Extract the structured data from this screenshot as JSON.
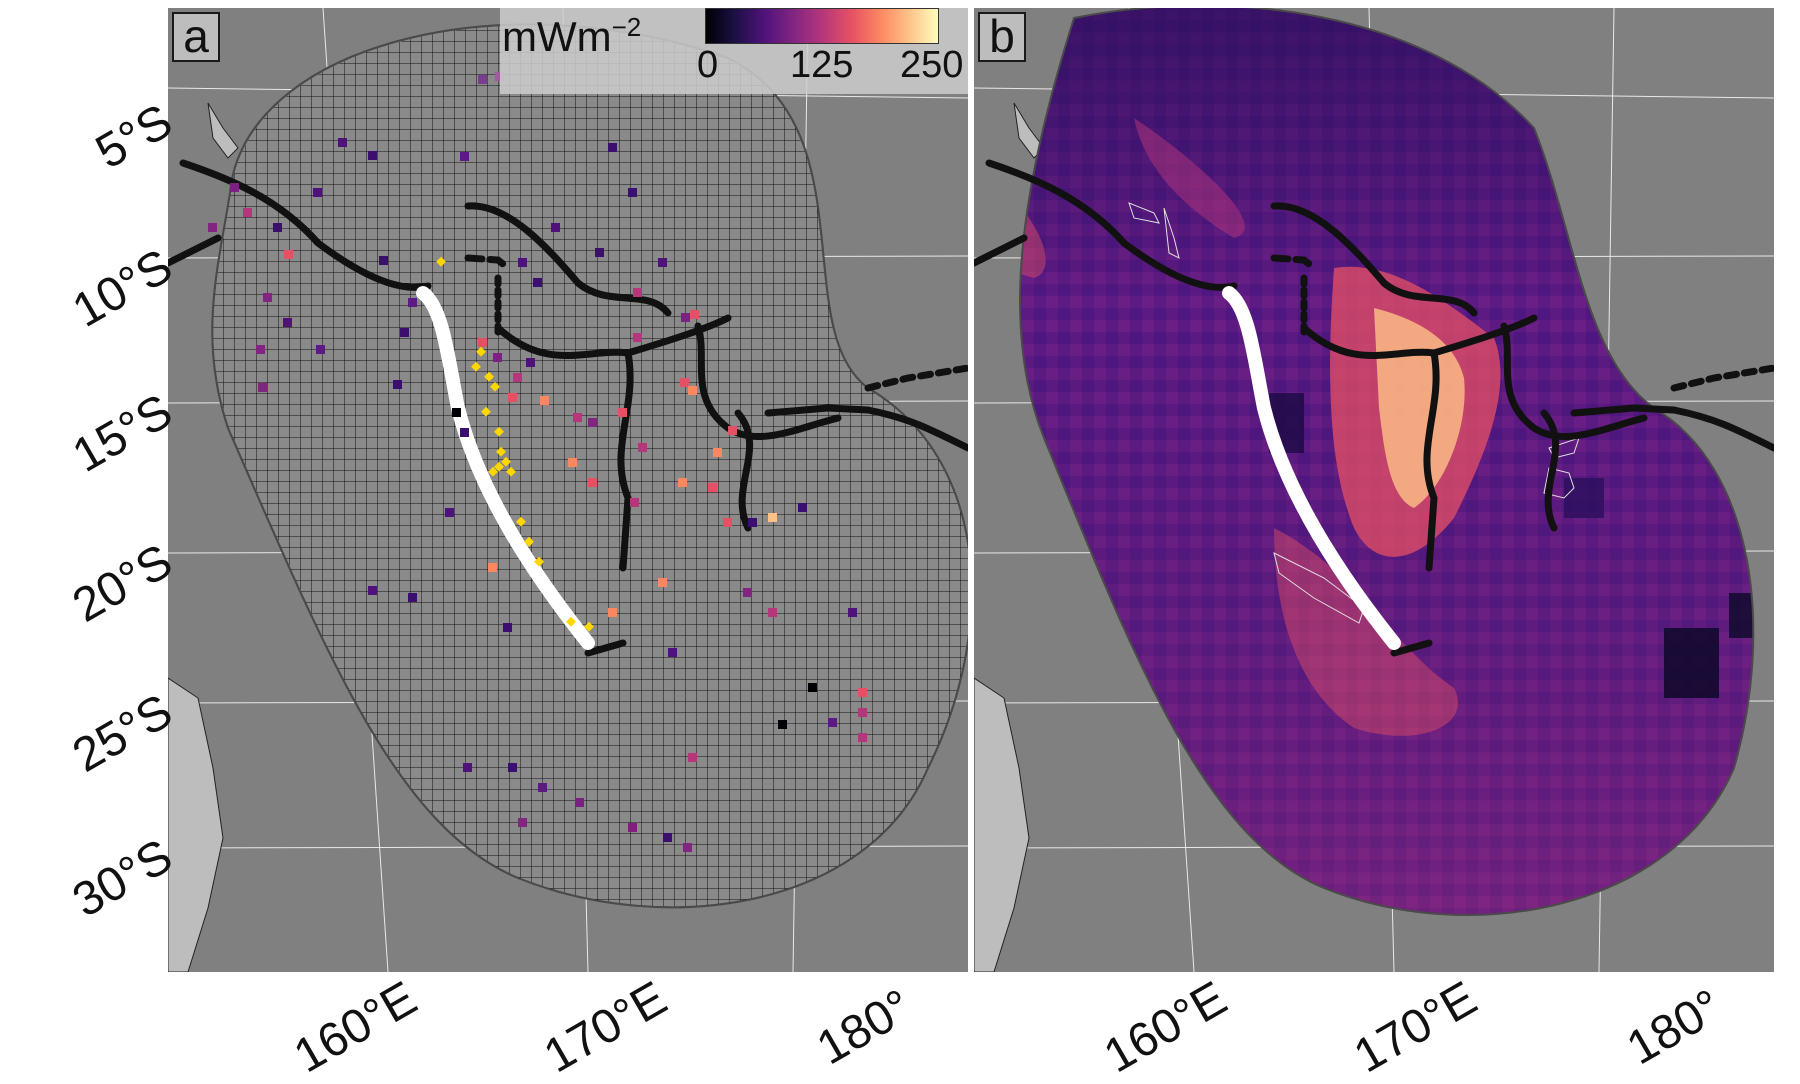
{
  "figure": {
    "panels": [
      {
        "label": "a",
        "content": "heat-flow observations over analysis grid"
      },
      {
        "label": "b",
        "content": "predicted heat-flow grid"
      }
    ],
    "latitude_labels": [
      "5°S",
      "10°S",
      "15°S",
      "20°S",
      "25°S",
      "30°S"
    ],
    "longitude_labels": [
      "160°E",
      "170°E",
      "180°"
    ],
    "legend": {
      "unit_main": "mWm",
      "unit_exponent": "−2",
      "ticks": [
        "0",
        "125",
        "250"
      ],
      "range": [
        0,
        250
      ],
      "colormap": "magma"
    },
    "colors": {
      "ocean": "#808080",
      "land": "#bdbdbd",
      "plate_boundary": "#111111",
      "highlighted_trench": "#ffffff",
      "yellow_markers": "#ffd700"
    }
  }
}
